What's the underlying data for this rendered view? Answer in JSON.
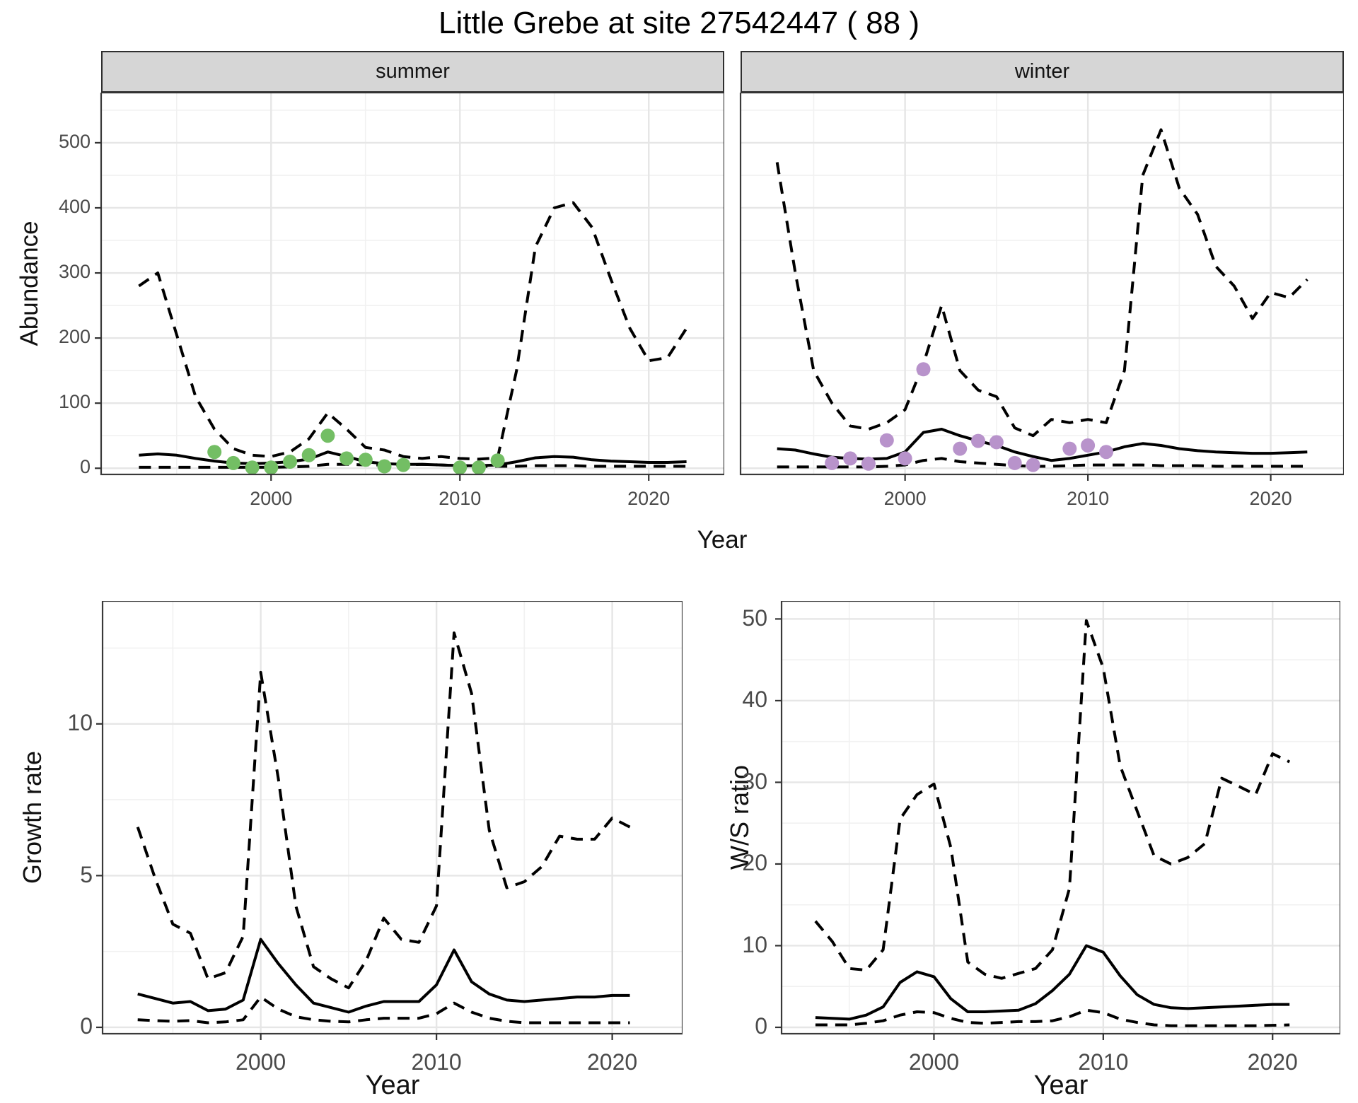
{
  "title": "Little Grebe at site 27542447 ( 88 )",
  "facets": {
    "summer": "summer",
    "winter": "winter"
  },
  "axes_titles": {
    "top_x": "Year",
    "top_y": "Abundance",
    "bottom_left_x": "Year",
    "bottom_left_y": "Growth rate",
    "bottom_right_x": "Year",
    "bottom_right_y": "W/S ratio"
  },
  "colors": {
    "summer_points": "#73BE64",
    "winter_points": "#B893CB",
    "line": "#000000",
    "strip_bg": "#D6D6D6",
    "grid_major": "#E6E6E6",
    "grid_minor": "#F1F1F1",
    "panel_border": "#3A3A3A",
    "tick_mark": "#333333",
    "tick_text": "#4A4A4A"
  },
  "chart_data": [
    {
      "id": "abundance-summer",
      "type": "line",
      "facet": "summer",
      "xlabel": "Year",
      "ylabel": "Abundance",
      "xlim": [
        1991,
        2024
      ],
      "ylim": [
        -9.5,
        577
      ],
      "xticks": [
        2000,
        2010,
        2020
      ],
      "yticks": [
        0,
        100,
        200,
        300,
        400,
        500
      ],
      "xminor": [
        1995,
        2005,
        2015
      ],
      "yminor": [
        50,
        150,
        250,
        350,
        450,
        550
      ],
      "grid": true,
      "x": [
        1993,
        1994,
        1995,
        1996,
        1997,
        1998,
        1999,
        2000,
        2001,
        2002,
        2003,
        2004,
        2005,
        2006,
        2007,
        2008,
        2009,
        2010,
        2011,
        2012,
        2013,
        2014,
        2015,
        2016,
        2017,
        2018,
        2019,
        2020,
        2021,
        2022
      ],
      "series": [
        {
          "name": "model_fit",
          "linestyle": "solid",
          "values": [
            20,
            22,
            20,
            15,
            11,
            8,
            7,
            8,
            10,
            14,
            25,
            18,
            10,
            7,
            6,
            6,
            5,
            4,
            4,
            5,
            10,
            16,
            18,
            17,
            13,
            11,
            10,
            9,
            9,
            10
          ]
        },
        {
          "name": "upper_ci",
          "linestyle": "dashed",
          "values": [
            280,
            300,
            205,
            110,
            60,
            30,
            20,
            18,
            25,
            45,
            85,
            60,
            32,
            28,
            18,
            15,
            18,
            15,
            14,
            16,
            150,
            340,
            400,
            408,
            370,
            290,
            215,
            165,
            170,
            215
          ]
        },
        {
          "name": "lower_ci",
          "linestyle": "dashed",
          "values": [
            1.5,
            1.5,
            1.5,
            1.5,
            1.5,
            1.5,
            1.5,
            1.5,
            2,
            3,
            6,
            6,
            5,
            5,
            5,
            6,
            5,
            4,
            3,
            3,
            3,
            4,
            4,
            4,
            3,
            3,
            3,
            3,
            3,
            3
          ]
        }
      ],
      "points": {
        "name": "summer-observations",
        "color_key": "summer_points",
        "x": [
          1997,
          1998,
          1999,
          2000,
          2001,
          2002,
          2003,
          2004,
          2005,
          2006,
          2007,
          2010,
          2011,
          2012
        ],
        "y": [
          25,
          8,
          1,
          1,
          10,
          20,
          50,
          15,
          13,
          3,
          5,
          1,
          1,
          12
        ]
      }
    },
    {
      "id": "abundance-winter",
      "type": "line",
      "facet": "winter",
      "xlabel": "Year",
      "ylabel": "Abundance",
      "xlim": [
        1991,
        2024
      ],
      "ylim": [
        -9.5,
        577
      ],
      "xticks": [
        2000,
        2010,
        2020
      ],
      "yticks": [
        0,
        100,
        200,
        300,
        400,
        500
      ],
      "xminor": [
        1995,
        2005,
        2015
      ],
      "yminor": [
        50,
        150,
        250,
        350,
        450,
        550
      ],
      "grid": true,
      "x": [
        1993,
        1994,
        1995,
        1996,
        1997,
        1998,
        1999,
        2000,
        2001,
        2002,
        2003,
        2004,
        2005,
        2006,
        2007,
        2008,
        2009,
        2010,
        2011,
        2012,
        2013,
        2014,
        2015,
        2016,
        2017,
        2018,
        2019,
        2020,
        2021,
        2022
      ],
      "series": [
        {
          "name": "model_fit",
          "linestyle": "solid",
          "values": [
            30,
            28,
            22,
            17,
            15,
            14,
            15,
            25,
            55,
            60,
            50,
            42,
            35,
            25,
            18,
            12,
            15,
            20,
            25,
            33,
            38,
            35,
            30,
            27,
            25,
            24,
            23,
            23,
            24,
            25
          ]
        },
        {
          "name": "upper_ci",
          "linestyle": "dashed",
          "values": [
            470,
            300,
            150,
            100,
            65,
            60,
            70,
            90,
            160,
            250,
            150,
            120,
            110,
            62,
            50,
            75,
            70,
            75,
            70,
            150,
            450,
            520,
            430,
            390,
            310,
            280,
            230,
            270,
            262,
            290
          ]
        },
        {
          "name": "lower_ci",
          "linestyle": "dashed",
          "values": [
            2,
            2,
            2,
            2,
            2,
            2,
            3,
            5,
            12,
            15,
            10,
            8,
            6,
            4,
            3,
            3,
            4,
            5,
            5,
            5,
            5,
            4,
            4,
            4,
            3,
            3,
            3,
            3,
            3,
            3
          ]
        }
      ],
      "points": {
        "name": "winter-observations",
        "color_key": "winter_points",
        "x": [
          1996,
          1997,
          1998,
          1999,
          2000,
          2001,
          2003,
          2004,
          2005,
          2006,
          2007,
          2009,
          2010,
          2011
        ],
        "y": [
          8,
          15,
          7,
          43,
          15,
          152,
          30,
          42,
          40,
          8,
          5,
          30,
          35,
          25
        ]
      }
    },
    {
      "id": "growth-rate",
      "type": "line",
      "facet": "",
      "xlabel": "Year",
      "ylabel": "Growth rate",
      "xlim": [
        1991,
        2024
      ],
      "ylim": [
        -0.21,
        14.05
      ],
      "xticks": [
        2000,
        2010,
        2020
      ],
      "yticks": [
        0,
        5,
        10
      ],
      "xminor": [
        1995,
        2005,
        2015
      ],
      "yminor": [
        2.5,
        7.5,
        12.5
      ],
      "grid": true,
      "x": [
        1993,
        1994,
        1995,
        1996,
        1997,
        1998,
        1999,
        2000,
        2001,
        2002,
        2003,
        2004,
        2005,
        2006,
        2007,
        2008,
        2009,
        2010,
        2011,
        2012,
        2013,
        2014,
        2015,
        2016,
        2017,
        2018,
        2019,
        2020,
        2021
      ],
      "series": [
        {
          "name": "model_fit",
          "linestyle": "solid",
          "values": [
            1.1,
            0.95,
            0.8,
            0.85,
            0.55,
            0.6,
            0.9,
            2.9,
            2.1,
            1.4,
            0.8,
            0.65,
            0.5,
            0.7,
            0.85,
            0.85,
            0.85,
            1.4,
            2.55,
            1.5,
            1.1,
            0.9,
            0.85,
            0.9,
            0.95,
            1.0,
            1.0,
            1.05,
            1.05
          ]
        },
        {
          "name": "upper_ci",
          "linestyle": "dashed",
          "values": [
            6.6,
            4.9,
            3.4,
            3.1,
            1.6,
            1.8,
            3.0,
            11.7,
            8.2,
            4.0,
            2.0,
            1.6,
            1.3,
            2.2,
            3.6,
            2.9,
            2.8,
            4.0,
            13.0,
            11.0,
            6.5,
            4.6,
            4.8,
            5.3,
            6.3,
            6.2,
            6.2,
            6.9,
            6.6
          ]
        },
        {
          "name": "lower_ci",
          "linestyle": "dashed",
          "values": [
            0.25,
            0.22,
            0.2,
            0.22,
            0.15,
            0.18,
            0.25,
            1.0,
            0.6,
            0.35,
            0.25,
            0.2,
            0.18,
            0.25,
            0.3,
            0.3,
            0.3,
            0.45,
            0.8,
            0.5,
            0.3,
            0.2,
            0.15,
            0.15,
            0.15,
            0.15,
            0.15,
            0.15,
            0.15
          ]
        }
      ]
    },
    {
      "id": "ws-ratio",
      "type": "line",
      "facet": "",
      "xlabel": "Year",
      "ylabel": "W/S ratio",
      "xlim": [
        1991,
        2024
      ],
      "ylim": [
        -0.78,
        52.2
      ],
      "xticks": [
        2000,
        2010,
        2020
      ],
      "yticks": [
        0,
        10,
        20,
        30,
        40,
        50
      ],
      "xminor": [
        1995,
        2005,
        2015
      ],
      "yminor": [
        5,
        15,
        25,
        35,
        45
      ],
      "grid": true,
      "x": [
        1993,
        1994,
        1995,
        1996,
        1997,
        1998,
        1999,
        2000,
        2001,
        2002,
        2003,
        2004,
        2005,
        2006,
        2007,
        2008,
        2009,
        2010,
        2011,
        2012,
        2013,
        2014,
        2015,
        2016,
        2017,
        2018,
        2019,
        2020,
        2021
      ],
      "series": [
        {
          "name": "model_fit",
          "linestyle": "solid",
          "values": [
            1.2,
            1.1,
            1.0,
            1.5,
            2.5,
            5.5,
            6.8,
            6.2,
            3.5,
            1.9,
            1.9,
            2.0,
            2.1,
            2.9,
            4.5,
            6.5,
            10.0,
            9.2,
            6.3,
            4.0,
            2.8,
            2.4,
            2.3,
            2.4,
            2.5,
            2.6,
            2.7,
            2.8,
            2.8
          ]
        },
        {
          "name": "upper_ci",
          "linestyle": "dashed",
          "values": [
            13,
            10.5,
            7.2,
            7.0,
            9.5,
            25.5,
            28.5,
            29.8,
            22,
            8.0,
            6.5,
            6.0,
            6.6,
            7.2,
            9.5,
            17,
            49.8,
            44,
            32,
            26.5,
            21,
            20,
            20.8,
            22.5,
            30.5,
            29.5,
            28.5,
            33.5,
            32.5
          ]
        },
        {
          "name": "lower_ci",
          "linestyle": "dashed",
          "values": [
            0.3,
            0.3,
            0.3,
            0.5,
            0.8,
            1.5,
            1.9,
            1.8,
            1.1,
            0.6,
            0.5,
            0.6,
            0.7,
            0.7,
            0.8,
            1.3,
            2.1,
            1.8,
            1.0,
            0.6,
            0.3,
            0.2,
            0.2,
            0.2,
            0.2,
            0.2,
            0.2,
            0.25,
            0.3
          ]
        }
      ]
    }
  ]
}
